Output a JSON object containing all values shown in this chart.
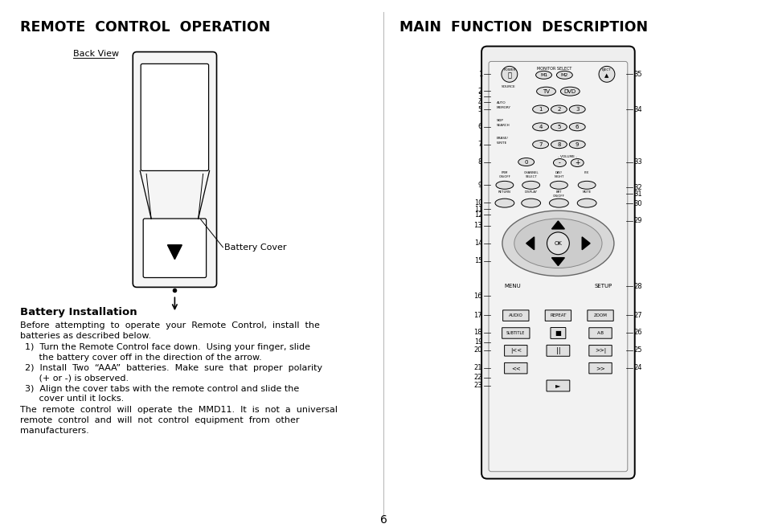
{
  "left_title": "REMOTE  CONTROL  OPERATION",
  "right_title": "MAIN  FUNCTION  DESCRIPTION",
  "back_view_label": "Back View",
  "battery_cover_label": "Battery Cover",
  "battery_install_title": "Battery Installation",
  "paragraph1_line1": "Before  attempting  to  operate  your  Remote  Control,  install  the",
  "paragraph1_line2": "batteries as described below.",
  "step1_line1": "1)  Turn the Remote Control face down.  Using your finger, slide",
  "step1_line2": "     the battery cover off in the direction of the arrow.",
  "step2_line1": "2)  Install  Two  “AAA”  batteries.  Make  sure  that  proper  polarity",
  "step2_line2": "     (+ or -) is observed.",
  "step3_line1": "3)  Align the cover tabs with the remote control and slide the",
  "step3_line2": "     cover until it locks.",
  "para2_line1": "The  remote  control  will  operate  the  MMD11.  It  is  not  a  universal",
  "para2_line2": "remote  control  and  will  not  control  equipment  from  other",
  "para2_line3": "manufacturers.",
  "page_number": "6",
  "bg_color": "#ffffff",
  "text_color": "#000000"
}
